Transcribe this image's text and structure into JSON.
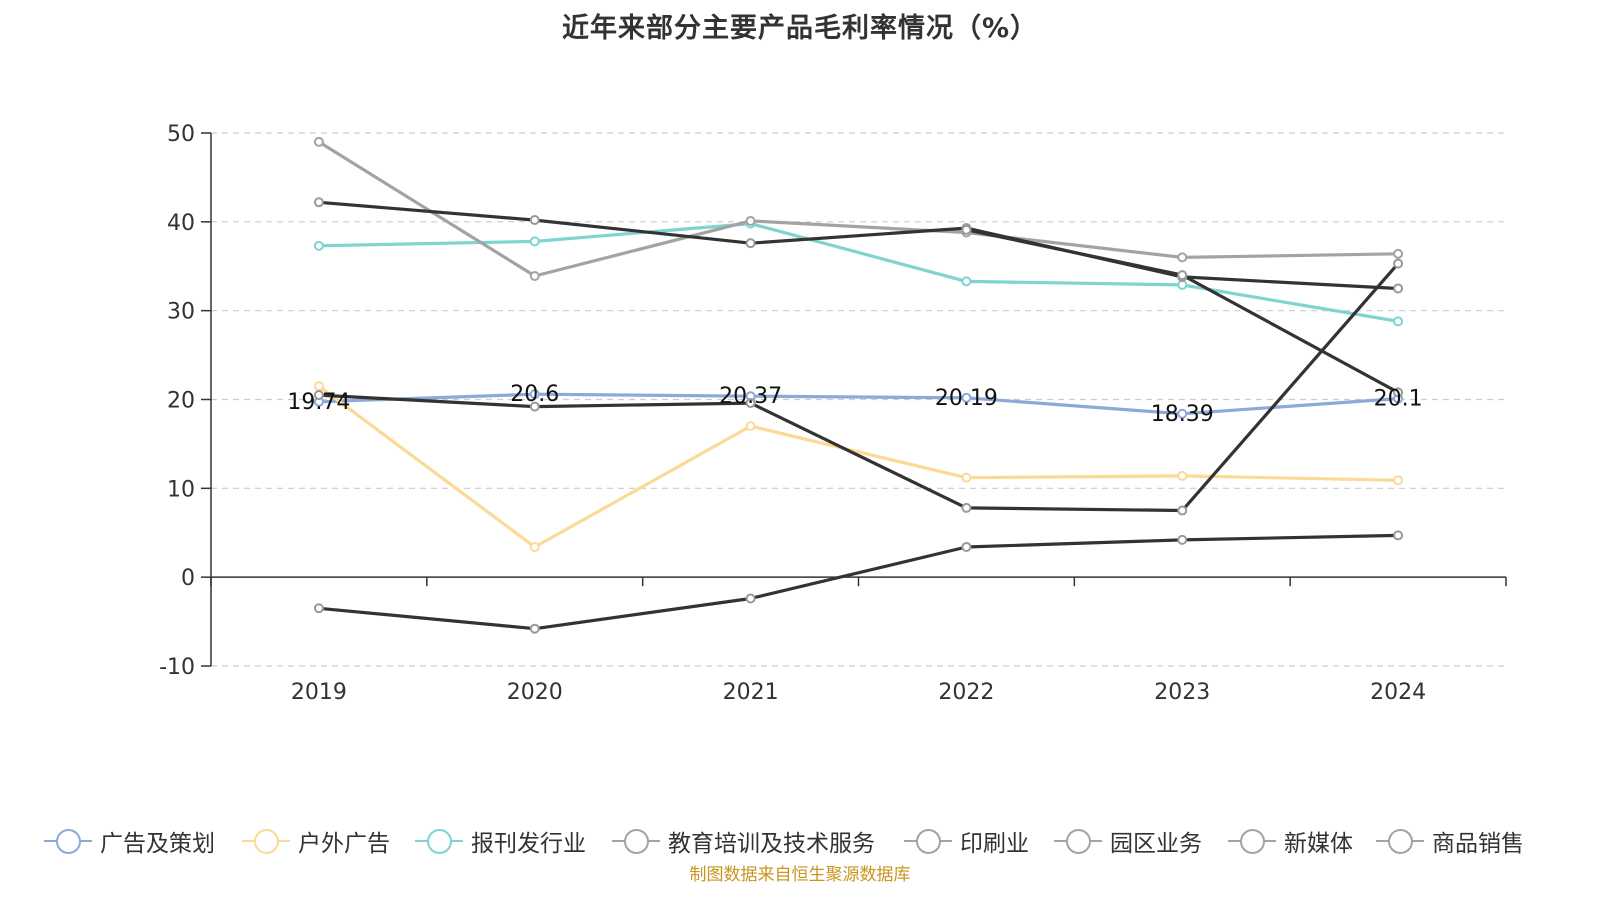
{
  "title": "近年来部分主要产品毛利率情况（%）",
  "source": "制图数据来自恒生聚源数据库",
  "chart_data": {
    "type": "line",
    "title": "近年来部分主要产品毛利率情况（%）",
    "xlabel": "",
    "ylabel": "",
    "categories": [
      "2019",
      "2020",
      "2021",
      "2022",
      "2023",
      "2024"
    ],
    "ylim": [
      -10,
      50
    ],
    "yticks": [
      -10,
      0,
      10,
      20,
      30,
      40,
      50
    ],
    "grid": true,
    "legend_position": "bottom",
    "series": [
      {
        "name": "广告及策划",
        "color": "#8ca9d8",
        "values": [
          19.74,
          20.6,
          20.37,
          20.19,
          18.39,
          20.1
        ],
        "labels": [
          "19.74",
          "20.6",
          "20.37",
          "20.19",
          "18.39",
          "20.1"
        ]
      },
      {
        "name": "户外广告",
        "color": "#fcd996",
        "values": [
          21.5,
          3.4,
          17.0,
          11.2,
          11.4,
          10.9
        ]
      },
      {
        "name": "报刊发行业",
        "color": "#7fd4d1",
        "values": [
          37.3,
          37.8,
          39.8,
          33.3,
          32.9,
          28.8
        ]
      },
      {
        "name": "教育培训及技术服务",
        "color": "#a3a3a3",
        "values": [
          49.0,
          33.9,
          40.1,
          38.8,
          36.0,
          36.4
        ]
      },
      {
        "name": "印刷业",
        "color": "#333333",
        "values": [
          42.2,
          40.2,
          37.6,
          39.3,
          33.8,
          32.5
        ]
      },
      {
        "name": "园区业务",
        "color": "#333333",
        "values": [
          20.5,
          19.2,
          19.6,
          7.8,
          7.5,
          35.3
        ]
      },
      {
        "name": "新媒体",
        "color": "#333333",
        "values": [
          null,
          null,
          null,
          39.1,
          34.0,
          20.8
        ]
      },
      {
        "name": "商品销售",
        "color": "#333333",
        "values": [
          -3.5,
          -5.8,
          -2.4,
          3.4,
          4.2,
          4.7
        ]
      }
    ]
  },
  "legend": [
    {
      "name": "广告及策划",
      "color": "#8ca9d8"
    },
    {
      "name": "户外广告",
      "color": "#fcd996"
    },
    {
      "name": "报刊发行业",
      "color": "#7fd4d1"
    },
    {
      "name": "教育培训及技术服务",
      "color": "#a3a3a3"
    },
    {
      "name": "印刷业",
      "color": "#a3a3a3"
    },
    {
      "name": "园区业务",
      "color": "#a3a3a3"
    },
    {
      "name": "新媒体",
      "color": "#a3a3a3"
    },
    {
      "name": "商品销售",
      "color": "#a3a3a3"
    }
  ]
}
